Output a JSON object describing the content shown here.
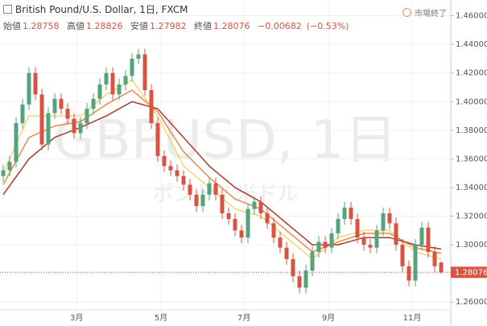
{
  "chart_data": {
    "type": "candlestick",
    "title": "British Pound/U.S. Dollar, 1日, FXCM",
    "status": "市場終了",
    "watermark": "GBPUSD, 1日",
    "watermark_sub": "ポンド / 米ドル",
    "ohlc_labels": [
      "始値",
      "高値",
      "安値",
      "終値"
    ],
    "change": "−0.00682",
    "change_pct": "(−0.53%)",
    "up_color": "#53a47c",
    "down_color": "#d75442",
    "x": [
      0,
      1,
      2,
      3,
      4,
      5,
      6,
      7,
      8,
      9,
      10,
      11,
      12,
      13,
      14,
      15,
      16,
      17,
      18,
      19,
      20,
      21,
      22,
      23,
      24,
      25,
      26,
      27,
      28,
      29,
      30,
      31,
      32,
      33,
      34,
      35,
      36,
      37,
      38,
      39,
      40,
      41,
      42,
      43,
      44,
      45,
      46,
      47,
      48,
      49,
      50,
      51,
      52,
      53,
      54,
      55,
      56,
      57,
      58,
      59,
      60,
      61,
      62,
      63,
      64,
      65,
      66,
      67,
      68
    ],
    "open": [
      1.348,
      1.352,
      1.358,
      1.385,
      1.398,
      1.42,
      1.405,
      1.37,
      1.392,
      1.402,
      1.395,
      1.388,
      1.378,
      1.385,
      1.395,
      1.402,
      1.412,
      1.42,
      1.405,
      1.412,
      1.418,
      1.43,
      1.433,
      1.408,
      1.385,
      1.362,
      1.355,
      1.352,
      1.348,
      1.342,
      1.335,
      1.327,
      1.335,
      1.343,
      1.335,
      1.322,
      1.318,
      1.31,
      1.305,
      1.325,
      1.33,
      1.322,
      1.315,
      1.305,
      1.298,
      1.29,
      1.278,
      1.27,
      1.282,
      1.295,
      1.302,
      1.298,
      1.308,
      1.318,
      1.326,
      1.318,
      1.305,
      1.3,
      1.298,
      1.31,
      1.322,
      1.315,
      1.3,
      1.285,
      1.275,
      1.3,
      1.312,
      1.295,
      1.28758
    ],
    "high": [
      1.356,
      1.362,
      1.389,
      1.402,
      1.424,
      1.424,
      1.409,
      1.396,
      1.406,
      1.406,
      1.399,
      1.392,
      1.389,
      1.399,
      1.406,
      1.416,
      1.424,
      1.424,
      1.416,
      1.422,
      1.434,
      1.437,
      1.437,
      1.412,
      1.389,
      1.366,
      1.359,
      1.356,
      1.352,
      1.346,
      1.339,
      1.339,
      1.347,
      1.347,
      1.339,
      1.326,
      1.322,
      1.314,
      1.329,
      1.334,
      1.334,
      1.326,
      1.319,
      1.309,
      1.302,
      1.294,
      1.282,
      1.286,
      1.299,
      1.306,
      1.306,
      1.312,
      1.322,
      1.33,
      1.33,
      1.322,
      1.309,
      1.304,
      1.314,
      1.326,
      1.326,
      1.319,
      1.304,
      1.289,
      1.304,
      1.316,
      1.316,
      1.299,
      1.28826
    ],
    "low": [
      1.344,
      1.348,
      1.354,
      1.381,
      1.394,
      1.401,
      1.366,
      1.366,
      1.388,
      1.391,
      1.384,
      1.374,
      1.374,
      1.381,
      1.391,
      1.398,
      1.408,
      1.401,
      1.401,
      1.408,
      1.414,
      1.426,
      1.404,
      1.381,
      1.358,
      1.351,
      1.348,
      1.344,
      1.338,
      1.331,
      1.323,
      1.323,
      1.331,
      1.331,
      1.318,
      1.314,
      1.306,
      1.301,
      1.301,
      1.321,
      1.318,
      1.311,
      1.301,
      1.294,
      1.286,
      1.274,
      1.266,
      1.266,
      1.278,
      1.291,
      1.294,
      1.294,
      1.304,
      1.314,
      1.314,
      1.301,
      1.296,
      1.294,
      1.294,
      1.306,
      1.311,
      1.296,
      1.281,
      1.271,
      1.271,
      1.296,
      1.291,
      1.281,
      1.27982
    ],
    "close": [
      1.352,
      1.358,
      1.385,
      1.398,
      1.42,
      1.405,
      1.37,
      1.392,
      1.402,
      1.395,
      1.388,
      1.378,
      1.385,
      1.395,
      1.402,
      1.412,
      1.42,
      1.405,
      1.412,
      1.418,
      1.43,
      1.433,
      1.408,
      1.385,
      1.362,
      1.355,
      1.352,
      1.348,
      1.342,
      1.335,
      1.327,
      1.335,
      1.343,
      1.335,
      1.322,
      1.318,
      1.31,
      1.305,
      1.325,
      1.33,
      1.322,
      1.315,
      1.305,
      1.298,
      1.29,
      1.278,
      1.27,
      1.282,
      1.295,
      1.302,
      1.298,
      1.308,
      1.318,
      1.326,
      1.318,
      1.305,
      1.3,
      1.298,
      1.31,
      1.322,
      1.315,
      1.3,
      1.285,
      1.275,
      1.3,
      1.312,
      1.295,
      1.285,
      1.28076
    ],
    "ma": {
      "x": [
        0,
        4,
        8,
        12,
        16,
        20,
        24,
        28,
        32,
        36,
        40,
        44,
        48,
        52,
        56,
        60,
        64,
        68
      ],
      "series": [
        {
          "color": "#f5d76e",
          "values": [
            1.35,
            1.39,
            1.39,
            1.39,
            1.405,
            1.415,
            1.39,
            1.355,
            1.34,
            1.325,
            1.32,
            1.305,
            1.29,
            1.305,
            1.31,
            1.31,
            1.295,
            1.29
          ]
        },
        {
          "color": "#e8894a",
          "values": [
            1.342,
            1.375,
            1.383,
            1.386,
            1.398,
            1.408,
            1.393,
            1.365,
            1.347,
            1.332,
            1.325,
            1.31,
            1.295,
            1.302,
            1.308,
            1.308,
            1.298,
            1.294
          ]
        },
        {
          "color": "#a83a2c",
          "values": [
            1.335,
            1.36,
            1.375,
            1.382,
            1.39,
            1.4,
            1.395,
            1.375,
            1.355,
            1.34,
            1.33,
            1.315,
            1.3,
            1.3,
            1.305,
            1.305,
            1.3,
            1.297
          ]
        }
      ]
    },
    "xlim": [
      -0.5,
      69.5
    ],
    "xticks": [
      {
        "value": 11.4,
        "label": "3月"
      },
      {
        "value": 24.5,
        "label": "5月"
      },
      {
        "value": 37.4,
        "label": "7月"
      },
      {
        "value": 50.5,
        "label": "9月"
      },
      {
        "value": 63.5,
        "label": "11月"
      }
    ],
    "ylim": [
      1.25,
      1.471
    ],
    "yticks": [
      {
        "value": 1.26,
        "label": "1.26000"
      },
      {
        "value": 1.28,
        "label": "1.28000"
      },
      {
        "value": 1.3,
        "label": "1.30000"
      },
      {
        "value": 1.32,
        "label": "1.32000"
      },
      {
        "value": 1.34,
        "label": "1.34000"
      },
      {
        "value": 1.36,
        "label": "1.36000"
      },
      {
        "value": 1.38,
        "label": "1.38000"
      },
      {
        "value": 1.4,
        "label": "1.40000"
      },
      {
        "value": 1.42,
        "label": "1.42000"
      },
      {
        "value": 1.44,
        "label": "1.44000"
      },
      {
        "value": 1.46,
        "label": "1.46000"
      }
    ],
    "grid": true
  }
}
